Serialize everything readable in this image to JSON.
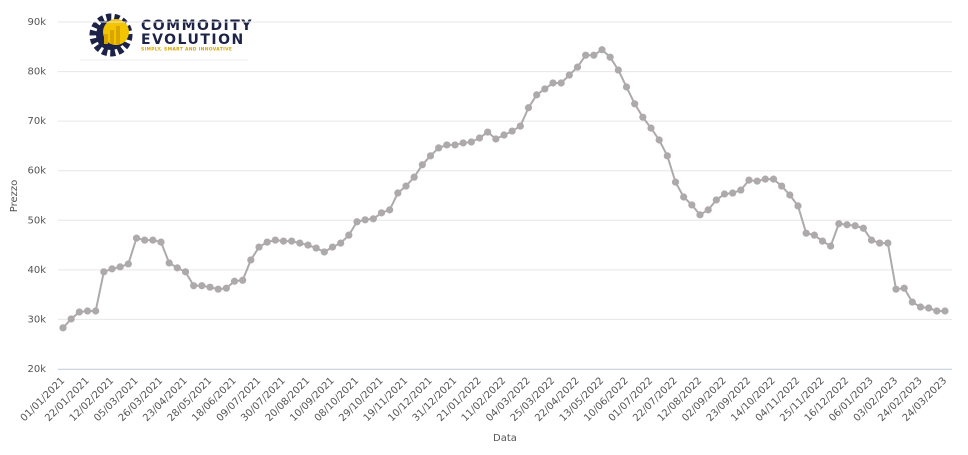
{
  "logo": {
    "line1": "COMMODITY",
    "line2": "EVOLUTION",
    "tagline": "SIMPLY, SMART AND INNOVATIVE"
  },
  "chart_data": {
    "type": "line",
    "xlabel": "Data",
    "ylabel": "Prezzo",
    "categories": [
      "01/01/2021",
      null,
      null,
      "22/01/2021",
      null,
      null,
      "12/02/2021",
      null,
      null,
      "05/03/2021",
      null,
      null,
      "26/03/2021",
      null,
      null,
      "23/04/2021",
      null,
      null,
      "28/05/2021",
      null,
      null,
      "18/06/2021",
      null,
      null,
      "09/07/2021",
      null,
      null,
      "30/07/2021",
      null,
      null,
      "20/08/2021",
      null,
      null,
      "10/09/2021",
      null,
      null,
      "08/10/2021",
      null,
      null,
      "29/10/2021",
      null,
      null,
      "19/11/2021",
      null,
      null,
      "10/12/2021",
      null,
      null,
      "31/12/2021",
      null,
      null,
      "21/01/2022",
      null,
      null,
      "11/02/2022",
      null,
      null,
      "04/03/2022",
      null,
      null,
      "25/03/2022",
      null,
      null,
      "22/04/2022",
      null,
      null,
      "13/05/2022",
      null,
      null,
      "10/06/2022",
      null,
      null,
      "01/07/2022",
      null,
      null,
      "22/07/2022",
      null,
      null,
      "12/08/2022",
      null,
      null,
      "02/09/2022",
      null,
      null,
      "23/09/2022",
      null,
      null,
      "14/10/2022",
      null,
      null,
      "04/11/2022",
      null,
      null,
      "25/11/2022",
      null,
      null,
      "16/12/2022",
      null,
      null,
      "06/01/2023",
      null,
      null,
      "03/02/2023",
      null,
      null,
      "24/02/2023",
      null,
      null,
      "24/03/2023"
    ],
    "series": [
      {
        "color": "#aeaaac",
        "values": [
          28300,
          30100,
          31500,
          31700,
          31700,
          39600,
          40200,
          40600,
          41200,
          46400,
          46000,
          46000,
          45600,
          41400,
          40400,
          39600,
          36800,
          36800,
          36500,
          36100,
          36300,
          37700,
          37900,
          42000,
          44600,
          45600,
          46000,
          45800,
          45800,
          45400,
          45000,
          44400,
          43600,
          44600,
          45400,
          47000,
          49700,
          50100,
          50300,
          51500,
          52100,
          55500,
          56900,
          58700,
          61200,
          63000,
          64600,
          65200,
          65200,
          65600,
          65800,
          66600,
          67800,
          66400,
          67200,
          68000,
          69000,
          72700,
          75300,
          76500,
          77700,
          77700,
          79300,
          80900,
          83300,
          83300,
          84400,
          82900,
          80300,
          76900,
          73500,
          70800,
          68600,
          66200,
          63000,
          57700,
          54700,
          53100,
          51100,
          52100,
          54100,
          55300,
          55500,
          56100,
          58100,
          57900,
          58300,
          58300,
          56900,
          55100,
          52900,
          47400,
          47000,
          45800,
          44800,
          49300,
          49100,
          48900,
          48400,
          46000,
          45400,
          45400,
          36100,
          36300,
          33500,
          32500,
          32300,
          31700,
          31700
        ]
      }
    ],
    "ylim": [
      20000,
      90000
    ],
    "yticks": [
      {
        "value": 20000,
        "label": "20k"
      },
      {
        "value": 30000,
        "label": "30k"
      },
      {
        "value": 40000,
        "label": "40k"
      },
      {
        "value": 50000,
        "label": "50k"
      },
      {
        "value": 60000,
        "label": "60k"
      },
      {
        "value": 70000,
        "label": "70k"
      },
      {
        "value": 80000,
        "label": "80k"
      },
      {
        "value": 90000,
        "label": "90k"
      }
    ],
    "grid": true
  }
}
